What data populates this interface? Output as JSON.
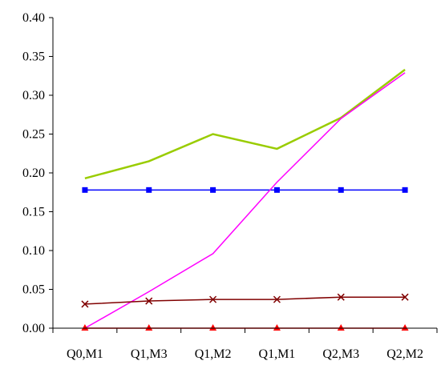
{
  "chart_data": {
    "type": "line",
    "categories": [
      "Q0,M1",
      "Q1,M3",
      "Q1,M2",
      "Q1,M1",
      "Q2,M3",
      "Q2,M2"
    ],
    "ylim": [
      0,
      0.4
    ],
    "y_ticks": [
      "0.00",
      "0.05",
      "0.10",
      "0.15",
      "0.20",
      "0.25",
      "0.30",
      "0.35",
      "0.40"
    ],
    "grid": false,
    "legend": "none",
    "title": "",
    "xlabel": "",
    "ylabel": "",
    "series": [
      {
        "values": [
          0.193,
          0.215,
          0.25,
          0.231,
          0.271,
          0.333
        ],
        "color": "#99CC00",
        "marker": "none",
        "stroke_width": 2.5
      },
      {
        "values": [
          0.178,
          0.178,
          0.178,
          0.178,
          0.178,
          0.178
        ],
        "color": "#0000FF",
        "marker": "square",
        "stroke_width": 1.5
      },
      {
        "values": [
          0.0,
          0.047,
          0.096,
          0.188,
          0.27,
          0.329
        ],
        "color": "#FF00FF",
        "marker": "none",
        "stroke_width": 1.5
      },
      {
        "values": [
          0.031,
          0.035,
          0.037,
          0.037,
          0.04,
          0.04
        ],
        "color": "#800000",
        "marker": "x",
        "stroke_width": 1.5
      },
      {
        "values": [
          0.0,
          0.0,
          0.0,
          0.0,
          0.0,
          0.0
        ],
        "color": "#FF0000",
        "marker": "triangle",
        "stroke_width": 1.5
      }
    ]
  }
}
